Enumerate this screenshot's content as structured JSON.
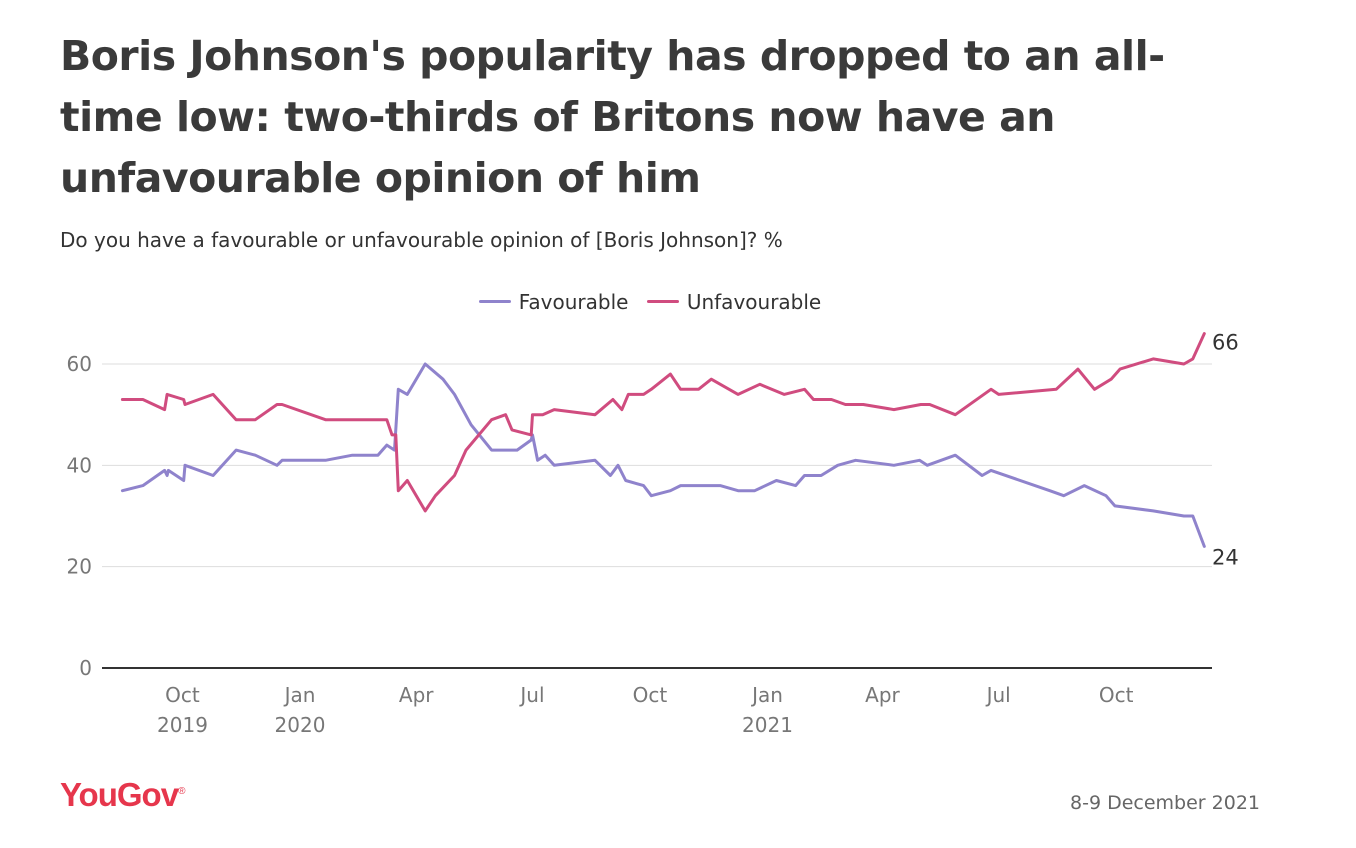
{
  "title": "Boris Johnson's popularity has dropped to an all-time low: two-thirds of Britons now have an unfavourable opinion of him",
  "subtitle": "Do you have a favourable or unfavourable opinion of [Boris Johnson]? %",
  "footer": {
    "brand": "YouGov",
    "date": "8-9 December 2021"
  },
  "colors": {
    "favourable": "#8f83cc",
    "unfavourable": "#d04c7f",
    "brand": "#e6364c"
  },
  "chart_data": {
    "type": "line",
    "title": "Boris Johnson's popularity has dropped to an all-time low: two-thirds of Britons now have an unfavourable opinion of him",
    "subtitle": "Do you have a favourable or unfavourable opinion of [Boris Johnson]? %",
    "xlabel": "",
    "ylabel": "",
    "ylim": [
      0,
      60
    ],
    "yticks": [
      0,
      20,
      40,
      60
    ],
    "xlim": [
      "2019-07-30",
      "2021-12-15"
    ],
    "xticks": [
      {
        "date": "2019-10-01",
        "label": "Oct",
        "year": "2019"
      },
      {
        "date": "2020-01-01",
        "label": "Jan",
        "year": "2020"
      },
      {
        "date": "2020-04-01",
        "label": "Apr",
        "year": ""
      },
      {
        "date": "2020-07-01",
        "label": "Jul",
        "year": ""
      },
      {
        "date": "2020-10-01",
        "label": "Oct",
        "year": ""
      },
      {
        "date": "2021-01-01",
        "label": "Jan",
        "year": "2021"
      },
      {
        "date": "2021-04-01",
        "label": "Apr",
        "year": ""
      },
      {
        "date": "2021-07-01",
        "label": "Jul",
        "year": ""
      },
      {
        "date": "2021-10-01",
        "label": "Oct",
        "year": ""
      }
    ],
    "grid": true,
    "legend_position": "top",
    "end_labels": {
      "favourable": "24",
      "unfavourable": "66"
    },
    "series": [
      {
        "name": "Favourable",
        "color": "#8f83cc",
        "points": [
          [
            "2019-08-15",
            35
          ],
          [
            "2019-08-31",
            36
          ],
          [
            "2019-09-17",
            39
          ],
          [
            "2019-09-19",
            38
          ],
          [
            "2019-09-20",
            39
          ],
          [
            "2019-10-02",
            37
          ],
          [
            "2019-10-03",
            40
          ],
          [
            "2019-10-25",
            38
          ],
          [
            "2019-11-12",
            43
          ],
          [
            "2019-11-27",
            42
          ],
          [
            "2019-12-14",
            40
          ],
          [
            "2019-12-18",
            41
          ],
          [
            "2020-01-21",
            41
          ],
          [
            "2020-02-11",
            42
          ],
          [
            "2020-03-02",
            42
          ],
          [
            "2020-03-09",
            44
          ],
          [
            "2020-03-15",
            43
          ],
          [
            "2020-03-18",
            55
          ],
          [
            "2020-03-25",
            54
          ],
          [
            "2020-04-08",
            60
          ],
          [
            "2020-04-22",
            57
          ],
          [
            "2020-05-01",
            54
          ],
          [
            "2020-05-14",
            48
          ],
          [
            "2020-05-30",
            43
          ],
          [
            "2020-06-19",
            43
          ],
          [
            "2020-06-30",
            45
          ],
          [
            "2020-07-01",
            46
          ],
          [
            "2020-07-05",
            41
          ],
          [
            "2020-07-11",
            42
          ],
          [
            "2020-07-18",
            40
          ],
          [
            "2020-08-19",
            41
          ],
          [
            "2020-08-31",
            38
          ],
          [
            "2020-09-06",
            40
          ],
          [
            "2020-09-12",
            37
          ],
          [
            "2020-09-26",
            36
          ],
          [
            "2020-10-02",
            34
          ],
          [
            "2020-10-17",
            35
          ],
          [
            "2020-10-25",
            36
          ],
          [
            "2020-11-25",
            36
          ],
          [
            "2020-12-09",
            35
          ],
          [
            "2020-12-22",
            35
          ],
          [
            "2021-01-08",
            37
          ],
          [
            "2021-01-23",
            36
          ],
          [
            "2021-01-30",
            38
          ],
          [
            "2021-02-12",
            38
          ],
          [
            "2021-02-25",
            40
          ],
          [
            "2021-03-11",
            41
          ],
          [
            "2021-04-10",
            40
          ],
          [
            "2021-04-30",
            41
          ],
          [
            "2021-05-06",
            40
          ],
          [
            "2021-05-28",
            42
          ],
          [
            "2021-06-18",
            38
          ],
          [
            "2021-06-25",
            39
          ],
          [
            "2021-08-10",
            35
          ],
          [
            "2021-08-21",
            34
          ],
          [
            "2021-09-06",
            36
          ],
          [
            "2021-09-23",
            34
          ],
          [
            "2021-09-30",
            32
          ],
          [
            "2021-10-30",
            31
          ],
          [
            "2021-11-23",
            30
          ],
          [
            "2021-11-30",
            30
          ],
          [
            "2021-12-09",
            24
          ]
        ]
      },
      {
        "name": "Unfavourable",
        "color": "#d04c7f",
        "points": [
          [
            "2019-08-15",
            53
          ],
          [
            "2019-08-31",
            53
          ],
          [
            "2019-09-17",
            51
          ],
          [
            "2019-09-19",
            54
          ],
          [
            "2019-10-02",
            53
          ],
          [
            "2019-10-03",
            52
          ],
          [
            "2019-10-25",
            54
          ],
          [
            "2019-11-12",
            49
          ],
          [
            "2019-11-27",
            49
          ],
          [
            "2019-12-14",
            52
          ],
          [
            "2019-12-18",
            52
          ],
          [
            "2020-01-21",
            49
          ],
          [
            "2020-03-09",
            49
          ],
          [
            "2020-03-13",
            46
          ],
          [
            "2020-03-16",
            46
          ],
          [
            "2020-03-18",
            35
          ],
          [
            "2020-03-25",
            37
          ],
          [
            "2020-04-08",
            31
          ],
          [
            "2020-04-16",
            34
          ],
          [
            "2020-05-01",
            38
          ],
          [
            "2020-05-10",
            43
          ],
          [
            "2020-05-30",
            49
          ],
          [
            "2020-06-10",
            50
          ],
          [
            "2020-06-15",
            47
          ],
          [
            "2020-06-30",
            46
          ],
          [
            "2020-07-01",
            50
          ],
          [
            "2020-07-09",
            50
          ],
          [
            "2020-07-18",
            51
          ],
          [
            "2020-08-19",
            50
          ],
          [
            "2020-09-02",
            53
          ],
          [
            "2020-09-09",
            51
          ],
          [
            "2020-09-14",
            54
          ],
          [
            "2020-09-26",
            54
          ],
          [
            "2020-10-02",
            55
          ],
          [
            "2020-10-17",
            58
          ],
          [
            "2020-10-25",
            55
          ],
          [
            "2020-11-08",
            55
          ],
          [
            "2020-11-18",
            57
          ],
          [
            "2020-12-09",
            54
          ],
          [
            "2020-12-26",
            56
          ],
          [
            "2021-01-14",
            54
          ],
          [
            "2021-01-30",
            55
          ],
          [
            "2021-02-06",
            53
          ],
          [
            "2021-02-20",
            53
          ],
          [
            "2021-03-03",
            52
          ],
          [
            "2021-03-17",
            52
          ],
          [
            "2021-04-10",
            51
          ],
          [
            "2021-05-01",
            52
          ],
          [
            "2021-05-08",
            52
          ],
          [
            "2021-05-28",
            50
          ],
          [
            "2021-06-25",
            55
          ],
          [
            "2021-07-01",
            54
          ],
          [
            "2021-08-15",
            55
          ],
          [
            "2021-09-01",
            59
          ],
          [
            "2021-09-14",
            55
          ],
          [
            "2021-09-27",
            57
          ],
          [
            "2021-10-04",
            59
          ],
          [
            "2021-10-30",
            61
          ],
          [
            "2021-11-23",
            60
          ],
          [
            "2021-11-30",
            61
          ],
          [
            "2021-12-09",
            66
          ]
        ]
      }
    ]
  }
}
